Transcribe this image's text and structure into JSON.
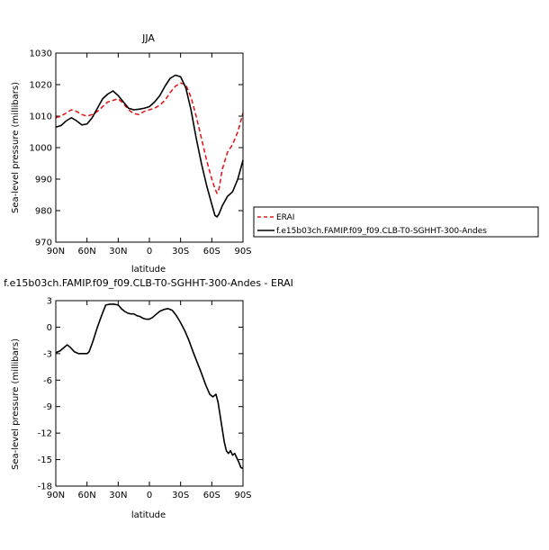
{
  "chart_data": [
    {
      "type": "line",
      "title": "JJA",
      "xlabel": "latitude",
      "ylabel": "Sea-level pressure (millibars)",
      "xlim": [
        90,
        -90
      ],
      "ylim": [
        970,
        1030
      ],
      "x_ticks": [
        90,
        60,
        30,
        0,
        -30,
        -60,
        -90
      ],
      "x_tick_labels": [
        "90N",
        "60N",
        "30N",
        "0",
        "30S",
        "60S",
        "90S"
      ],
      "y_ticks": [
        970,
        980,
        990,
        1000,
        1010,
        1020,
        1030
      ],
      "y_tick_labels": [
        "970",
        "980",
        "990",
        "1000",
        "1010",
        "1020",
        "1030"
      ],
      "legend": "right",
      "series": [
        {
          "name": "ERAI",
          "color": "#e31a1c",
          "dash": "dashed",
          "x": [
            90,
            85,
            80,
            75,
            70,
            65,
            60,
            55,
            50,
            45,
            40,
            35,
            30,
            25,
            20,
            15,
            10,
            5,
            0,
            -5,
            -10,
            -15,
            -20,
            -25,
            -30,
            -35,
            -40,
            -45,
            -50,
            -55,
            -60,
            -63,
            -65,
            -67,
            -70,
            -75,
            -80,
            -85,
            -90
          ],
          "y": [
            1009.5,
            1010,
            1011,
            1012,
            1011.5,
            1010.5,
            1010,
            1010.5,
            1011.5,
            1013,
            1014.5,
            1015,
            1015.5,
            1014,
            1012,
            1010.8,
            1010.5,
            1011.5,
            1012,
            1012.5,
            1013.5,
            1015,
            1017.5,
            1019.5,
            1020.5,
            1020,
            1016,
            1010,
            1003,
            996,
            990,
            987,
            985.5,
            987,
            993,
            998.5,
            1001,
            1005,
            1011
          ]
        },
        {
          "name": "f.e15b03ch.FAMIP.f09_f09.CLB-T0-SGHHT-300-Andes",
          "color": "#000000",
          "dash": "solid",
          "x": [
            90,
            85,
            80,
            75,
            70,
            65,
            60,
            55,
            50,
            45,
            40,
            35,
            30,
            25,
            20,
            15,
            10,
            5,
            0,
            -5,
            -10,
            -15,
            -20,
            -25,
            -30,
            -35,
            -40,
            -45,
            -50,
            -55,
            -60,
            -63,
            -65,
            -67,
            -70,
            -75,
            -80,
            -85,
            -90
          ],
          "y": [
            1006.5,
            1007,
            1008.5,
            1009.5,
            1008.5,
            1007.2,
            1007.5,
            1009.5,
            1012.5,
            1015.5,
            1017,
            1018,
            1016.5,
            1014.5,
            1012.5,
            1012,
            1012.2,
            1012.5,
            1013,
            1014.5,
            1016.5,
            1019.5,
            1022,
            1023,
            1022.5,
            1019,
            1012,
            1003,
            995,
            988,
            982,
            978.5,
            978,
            979,
            981.5,
            984.5,
            986,
            990,
            996
          ]
        }
      ]
    },
    {
      "type": "line",
      "title": "f.e15b03ch.FAMIP.f09_f09.CLB-T0-SGHHT-300-Andes - ERAI",
      "xlabel": "latitude",
      "ylabel": "Sea-level pressure (millibars)",
      "xlim": [
        90,
        -90
      ],
      "ylim": [
        -18,
        3
      ],
      "x_ticks": [
        90,
        60,
        30,
        0,
        -30,
        -60,
        -90
      ],
      "x_tick_labels": [
        "90N",
        "60N",
        "30N",
        "0",
        "30S",
        "60S",
        "90S"
      ],
      "y_ticks": [
        3,
        0,
        -3,
        -6,
        -9,
        -12,
        -15,
        -18
      ],
      "y_tick_labels": [
        "3",
        "0",
        "-3",
        "-6",
        "-9",
        "-12",
        "-15",
        "-18"
      ],
      "series": [
        {
          "color": "#000000",
          "dash": "solid",
          "x": [
            90,
            86,
            82,
            79,
            76,
            72,
            68,
            64,
            60,
            58,
            54,
            50,
            46,
            42,
            38,
            34,
            30,
            27,
            24,
            21,
            18,
            15,
            12,
            9,
            6,
            3,
            0,
            -3,
            -6,
            -10,
            -14,
            -18,
            -22,
            -26,
            -30,
            -34,
            -38,
            -42,
            -46,
            -50,
            -54,
            -58,
            -61,
            -64,
            -66,
            -68,
            -70,
            -72,
            -74,
            -76,
            -78,
            -80,
            -82,
            -84,
            -86,
            -88,
            -90
          ],
          "y": [
            -2.9,
            -2.7,
            -2.3,
            -2.0,
            -2.3,
            -2.8,
            -3.0,
            -3.0,
            -3.0,
            -2.8,
            -1.5,
            0.0,
            1.3,
            2.5,
            2.6,
            2.6,
            2.5,
            2.1,
            1.8,
            1.6,
            1.5,
            1.5,
            1.3,
            1.2,
            1.0,
            0.9,
            0.9,
            1.1,
            1.4,
            1.8,
            2.0,
            2.1,
            1.9,
            1.3,
            0.5,
            -0.4,
            -1.5,
            -2.8,
            -4.0,
            -5.2,
            -6.5,
            -7.6,
            -7.9,
            -7.6,
            -8.5,
            -10.0,
            -11.5,
            -13.0,
            -14.0,
            -14.3,
            -14.0,
            -14.5,
            -14.3,
            -14.8,
            -15.3,
            -15.9,
            -16.0
          ]
        }
      ]
    }
  ]
}
